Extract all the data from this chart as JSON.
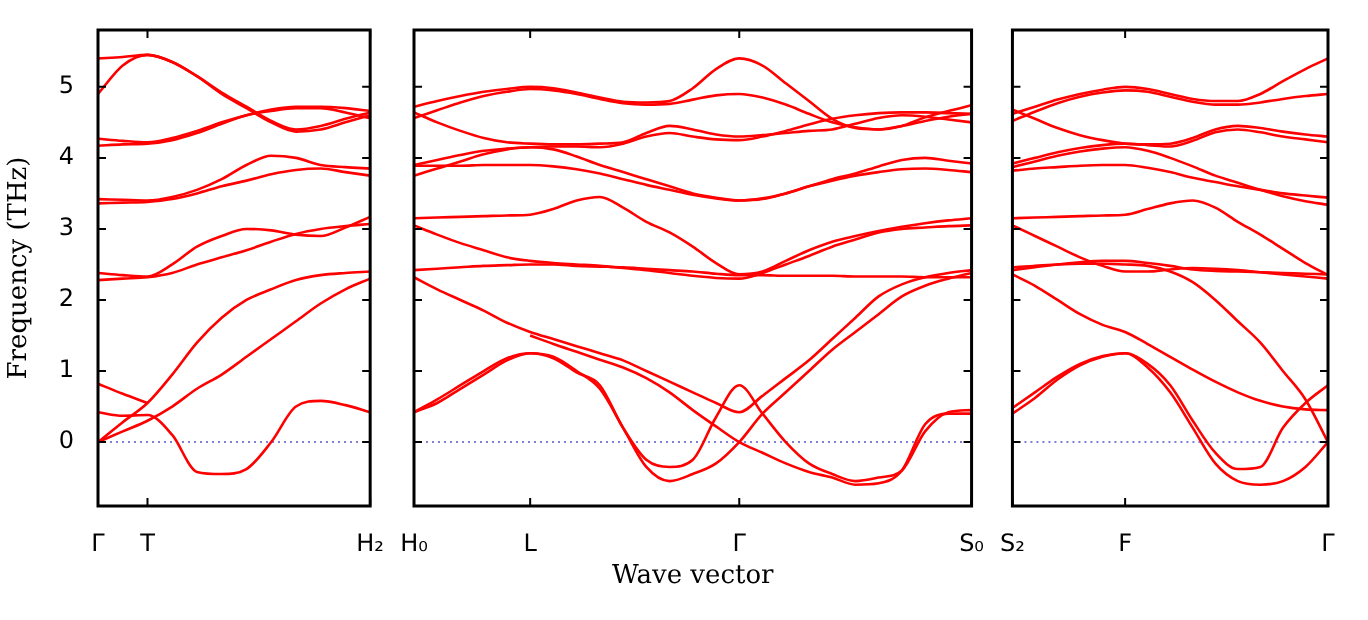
{
  "chart_data": [
    {
      "type": "line",
      "ylabel": "Frequency (THz)",
      "ylim": [
        -0.9,
        5.8
      ],
      "yticks": [
        0,
        1,
        2,
        3,
        4,
        5
      ],
      "categories": [
        "Γ",
        null,
        "T",
        null,
        null,
        null,
        null,
        null,
        null,
        null,
        null,
        "H₂"
      ],
      "marker": "none",
      "ref_lines": [
        {
          "axis": "y",
          "value": 0,
          "color": "#5555cc",
          "line_style": "dotted"
        }
      ],
      "series": [
        {
          "color": "#ff0000",
          "values": [
            5.4,
            5.42,
            5.45,
            5.35,
            5.15,
            4.9,
            4.7,
            4.5,
            4.37,
            4.4,
            4.5,
            4.6
          ]
        },
        {
          "color": "#ff0000",
          "values": [
            4.9,
            5.3,
            5.45,
            5.35,
            5.15,
            4.92,
            4.72,
            4.52,
            4.4,
            4.45,
            4.55,
            4.64
          ]
        },
        {
          "color": "#ff0000",
          "values": [
            4.27,
            4.24,
            4.22,
            4.28,
            4.38,
            4.5,
            4.6,
            4.68,
            4.72,
            4.72,
            4.7,
            4.66
          ]
        },
        {
          "color": "#ff0000",
          "values": [
            4.17,
            4.19,
            4.2,
            4.25,
            4.35,
            4.48,
            4.6,
            4.66,
            4.7,
            4.7,
            4.64,
            4.56
          ]
        },
        {
          "color": "#ff0000",
          "values": [
            3.42,
            3.41,
            3.4,
            3.45,
            3.55,
            3.7,
            3.9,
            4.03,
            4.0,
            3.9,
            3.87,
            3.85
          ]
        },
        {
          "color": "#ff0000",
          "values": [
            3.36,
            3.37,
            3.38,
            3.42,
            3.5,
            3.6,
            3.68,
            3.77,
            3.83,
            3.85,
            3.8,
            3.75
          ]
        },
        {
          "color": "#ff0000",
          "values": [
            2.38,
            2.35,
            2.33,
            2.5,
            2.75,
            2.9,
            3.0,
            2.98,
            2.92,
            2.9,
            3.02,
            3.17
          ]
        },
        {
          "color": "#ff0000",
          "values": [
            2.28,
            2.3,
            2.32,
            2.38,
            2.5,
            2.6,
            2.7,
            2.82,
            2.93,
            3.0,
            3.04,
            3.07
          ]
        },
        {
          "color": "#ff0000",
          "values": [
            0,
            0.28,
            0.55,
            0.95,
            1.4,
            1.75,
            2.0,
            2.15,
            2.28,
            2.35,
            2.38,
            2.4
          ]
        },
        {
          "color": "#ff0000",
          "values": [
            0,
            0.15,
            0.3,
            0.5,
            0.75,
            0.95,
            1.2,
            1.45,
            1.7,
            1.95,
            2.15,
            2.3
          ]
        },
        {
          "color": "#ff0000",
          "values": [
            0.82,
            0.68,
            0.55,
            null,
            null,
            null,
            null,
            null,
            null,
            null,
            null,
            null
          ]
        },
        {
          "color": "#ff0000",
          "values": [
            0.42,
            0.37,
            0.38,
            0.1,
            -0.42,
            -0.45,
            -0.38,
            0.0,
            0.5,
            0.58,
            0.52,
            0.42
          ]
        }
      ]
    },
    {
      "type": "line",
      "xlabel": "Wave vector",
      "ylim": [
        -0.9,
        5.8
      ],
      "yticks": [
        0,
        1,
        2,
        3,
        4,
        5
      ],
      "categories": [
        "H₀",
        null,
        null,
        null,
        null,
        "L",
        null,
        null,
        null,
        null,
        null,
        null,
        null,
        null,
        "Γ",
        null,
        null,
        null,
        null,
        null,
        null,
        null,
        null,
        null,
        "S₀"
      ],
      "tick_labels": "x",
      "marker": "none",
      "ref_lines": [
        {
          "axis": "y",
          "value": 0,
          "color": "#5555cc",
          "line_style": "dotted"
        }
      ],
      "series": [
        {
          "color": "#ff0000",
          "values": [
            4.72,
            4.8,
            4.87,
            4.93,
            4.97,
            5.0,
            4.98,
            4.92,
            4.85,
            4.79,
            4.78,
            4.8,
            4.98,
            5.25,
            5.4,
            5.3,
            5.05,
            4.8,
            4.55,
            4.42,
            4.4,
            4.45,
            4.52,
            4.58,
            4.62
          ]
        },
        {
          "color": "#ff0000",
          "values": [
            4.56,
            4.67,
            4.78,
            4.87,
            4.93,
            4.97,
            4.95,
            4.9,
            4.83,
            4.77,
            4.75,
            4.76,
            4.82,
            4.88,
            4.9,
            4.85,
            4.75,
            4.62,
            4.5,
            4.43,
            4.4,
            4.45,
            4.57,
            4.66,
            4.74
          ]
        },
        {
          "color": "#ff0000",
          "values": [
            4.64,
            4.5,
            4.38,
            4.28,
            4.22,
            4.2,
            4.19,
            4.19,
            4.2,
            4.22,
            4.35,
            4.45,
            4.4,
            4.33,
            4.3,
            4.32,
            4.35,
            4.38,
            4.4,
            4.48,
            4.56,
            4.6,
            4.58,
            4.54,
            4.5
          ]
        },
        {
          "color": "#ff0000",
          "values": [
            3.9,
            3.97,
            4.04,
            4.1,
            4.13,
            4.15,
            4.16,
            4.16,
            4.15,
            4.2,
            4.3,
            4.35,
            4.3,
            4.26,
            4.25,
            4.3,
            4.38,
            4.47,
            4.55,
            4.6,
            4.63,
            4.64,
            4.64,
            4.63,
            4.62
          ]
        },
        {
          "color": "#ff0000",
          "values": [
            3.89,
            3.89,
            3.89,
            3.9,
            3.9,
            3.9,
            3.88,
            3.84,
            3.78,
            3.7,
            3.62,
            3.55,
            3.48,
            3.43,
            3.4,
            3.42,
            3.5,
            3.6,
            3.7,
            3.78,
            3.88,
            3.97,
            4.0,
            3.96,
            3.92
          ]
        },
        {
          "color": "#ff0000",
          "values": [
            3.75,
            3.85,
            3.95,
            4.05,
            4.12,
            4.15,
            4.12,
            4.02,
            3.9,
            3.8,
            3.7,
            3.6,
            3.5,
            3.44,
            3.4,
            3.43,
            3.5,
            3.6,
            3.68,
            3.75,
            3.8,
            3.84,
            3.85,
            3.83,
            3.8
          ]
        },
        {
          "color": "#ff0000",
          "values": [
            3.15,
            3.16,
            3.17,
            3.18,
            3.19,
            3.2,
            3.28,
            3.4,
            3.45,
            3.3,
            3.1,
            2.95,
            2.75,
            2.52,
            2.36,
            2.4,
            2.55,
            2.7,
            2.82,
            2.9,
            2.97,
            3.03,
            3.08,
            3.12,
            3.15
          ]
        },
        {
          "color": "#ff0000",
          "values": [
            3.05,
            2.92,
            2.8,
            2.7,
            2.6,
            2.55,
            2.52,
            2.5,
            2.48,
            2.45,
            2.42,
            2.38,
            2.34,
            2.31,
            2.3,
            2.38,
            2.5,
            2.62,
            2.75,
            2.85,
            2.95,
            3.0,
            3.02,
            3.04,
            3.05
          ]
        },
        {
          "color": "#ff0000",
          "values": [
            2.42,
            2.44,
            2.46,
            2.48,
            2.49,
            2.5,
            2.5,
            2.48,
            2.47,
            2.46,
            2.44,
            2.42,
            2.4,
            2.37,
            2.35,
            2.35,
            2.34,
            2.34,
            2.34,
            2.33,
            2.33,
            2.33,
            2.32,
            2.32,
            2.32
          ]
        },
        {
          "color": "#ff0000",
          "values": [
            2.32,
            2.15,
            2.0,
            1.85,
            1.68,
            1.55,
            1.45,
            1.35,
            1.25,
            1.15,
            1.0,
            0.85,
            0.7,
            0.55,
            0.42,
            0.65,
            0.9,
            1.15,
            1.45,
            1.75,
            2.05,
            2.22,
            2.32,
            2.38,
            2.42
          ]
        },
        {
          "color": "#ff0000",
          "values": [
            0.42,
            0.55,
            0.75,
            0.95,
            1.15,
            1.25,
            1.2,
            1.0,
            0.75,
            0.2,
            -0.35,
            -0.55,
            -0.45,
            -0.3,
            0,
            0.4,
            0.7,
            1.0,
            1.3,
            1.55,
            1.8,
            2.05,
            2.2,
            2.3,
            2.38
          ]
        },
        {
          "color": "#ff0000",
          "values": [
            0.42,
            0.6,
            0.8,
            1.0,
            1.18,
            1.25,
            1.18,
            0.98,
            0.8,
            0.2,
            -0.25,
            -0.35,
            -0.25,
            0.35,
            0.8,
            0.4,
            0.0,
            -0.3,
            -0.45,
            -0.55,
            -0.5,
            -0.4,
            0.15,
            0.42,
            0.45
          ]
        },
        {
          "color": "#ff0000",
          "values": [
            null,
            null,
            null,
            null,
            null,
            1.5,
            1.38,
            1.27,
            1.16,
            1.05,
            0.9,
            0.7,
            0.45,
            0.22,
            0.0,
            -0.15,
            -0.3,
            -0.42,
            -0.5,
            -0.6,
            -0.58,
            -0.4,
            0.25,
            0.4,
            0.4
          ]
        }
      ]
    },
    {
      "type": "line",
      "ylim": [
        -0.9,
        5.8
      ],
      "yticks": [
        0,
        1,
        2,
        3,
        4,
        5
      ],
      "categories": [
        "S₂",
        null,
        null,
        null,
        null,
        "F",
        null,
        null,
        null,
        null,
        null,
        null,
        null,
        null,
        "Γ"
      ],
      "tick_labels": "x",
      "marker": "none",
      "ref_lines": [
        {
          "axis": "y",
          "value": 0,
          "color": "#5555cc",
          "line_style": "dotted"
        }
      ],
      "series": [
        {
          "color": "#ff0000",
          "values": [
            4.62,
            4.72,
            4.82,
            4.9,
            4.96,
            5.0,
            4.97,
            4.9,
            4.83,
            4.8,
            4.8,
            4.9,
            5.08,
            5.25,
            5.4
          ]
        },
        {
          "color": "#ff0000",
          "values": [
            4.52,
            4.65,
            4.77,
            4.86,
            4.92,
            4.95,
            4.93,
            4.86,
            4.79,
            4.75,
            4.75,
            4.78,
            4.83,
            4.87,
            4.9
          ]
        },
        {
          "color": "#ff0000",
          "values": [
            4.68,
            4.55,
            4.42,
            4.32,
            4.25,
            4.2,
            4.19,
            4.2,
            4.28,
            4.4,
            4.45,
            4.42,
            4.37,
            4.33,
            4.3
          ]
        },
        {
          "color": "#ff0000",
          "values": [
            3.92,
            4.0,
            4.08,
            4.14,
            4.18,
            4.2,
            4.18,
            4.16,
            4.24,
            4.36,
            4.4,
            4.36,
            4.3,
            4.26,
            4.22
          ]
        },
        {
          "color": "#ff0000",
          "values": [
            3.82,
            3.85,
            3.87,
            3.89,
            3.9,
            3.9,
            3.86,
            3.8,
            3.72,
            3.66,
            3.6,
            3.55,
            3.5,
            3.47,
            3.44
          ]
        },
        {
          "color": "#ff0000",
          "values": [
            3.87,
            3.95,
            4.03,
            4.09,
            4.13,
            4.15,
            4.1,
            4.0,
            3.88,
            3.75,
            3.65,
            3.55,
            3.46,
            3.39,
            3.34
          ]
        },
        {
          "color": "#ff0000",
          "values": [
            3.15,
            3.16,
            3.17,
            3.18,
            3.19,
            3.2,
            3.28,
            3.36,
            3.4,
            3.3,
            3.1,
            2.92,
            2.72,
            2.52,
            2.35
          ]
        },
        {
          "color": "#ff0000",
          "values": [
            3.05,
            2.9,
            2.75,
            2.6,
            2.48,
            2.4,
            2.4,
            2.43,
            2.45,
            2.44,
            2.42,
            2.39,
            2.36,
            2.33,
            2.3
          ]
        },
        {
          "color": "#ff0000",
          "values": [
            2.42,
            2.46,
            2.5,
            2.53,
            2.55,
            2.55,
            2.52,
            2.48,
            2.43,
            2.41,
            2.4,
            2.39,
            2.38,
            2.37,
            2.36
          ]
        },
        {
          "color": "#ff0000",
          "values": [
            2.36,
            2.2,
            2.0,
            1.8,
            1.65,
            1.55,
            1.38,
            1.2,
            1.02,
            0.85,
            0.7,
            0.58,
            0.5,
            0.46,
            0.45
          ]
        },
        {
          "color": "#ff0000",
          "values": [
            0.4,
            0.62,
            0.88,
            1.08,
            1.2,
            1.25,
            1.1,
            0.8,
            0.3,
            -0.15,
            -0.38,
            -0.35,
            0.2,
            0.55,
            0.8
          ]
        },
        {
          "color": "#ff0000",
          "values": [
            0.48,
            0.7,
            0.92,
            1.1,
            1.21,
            1.25,
            1.05,
            0.7,
            0.2,
            -0.3,
            -0.55,
            -0.6,
            -0.55,
            -0.35,
            0
          ]
        },
        {
          "color": "#ff0000",
          "values": [
            2.46,
            2.48,
            2.5,
            2.51,
            2.51,
            2.5,
            2.48,
            2.4,
            2.25,
            2.0,
            1.7,
            1.4,
            1.0,
            0.6,
            0
          ]
        }
      ]
    }
  ]
}
